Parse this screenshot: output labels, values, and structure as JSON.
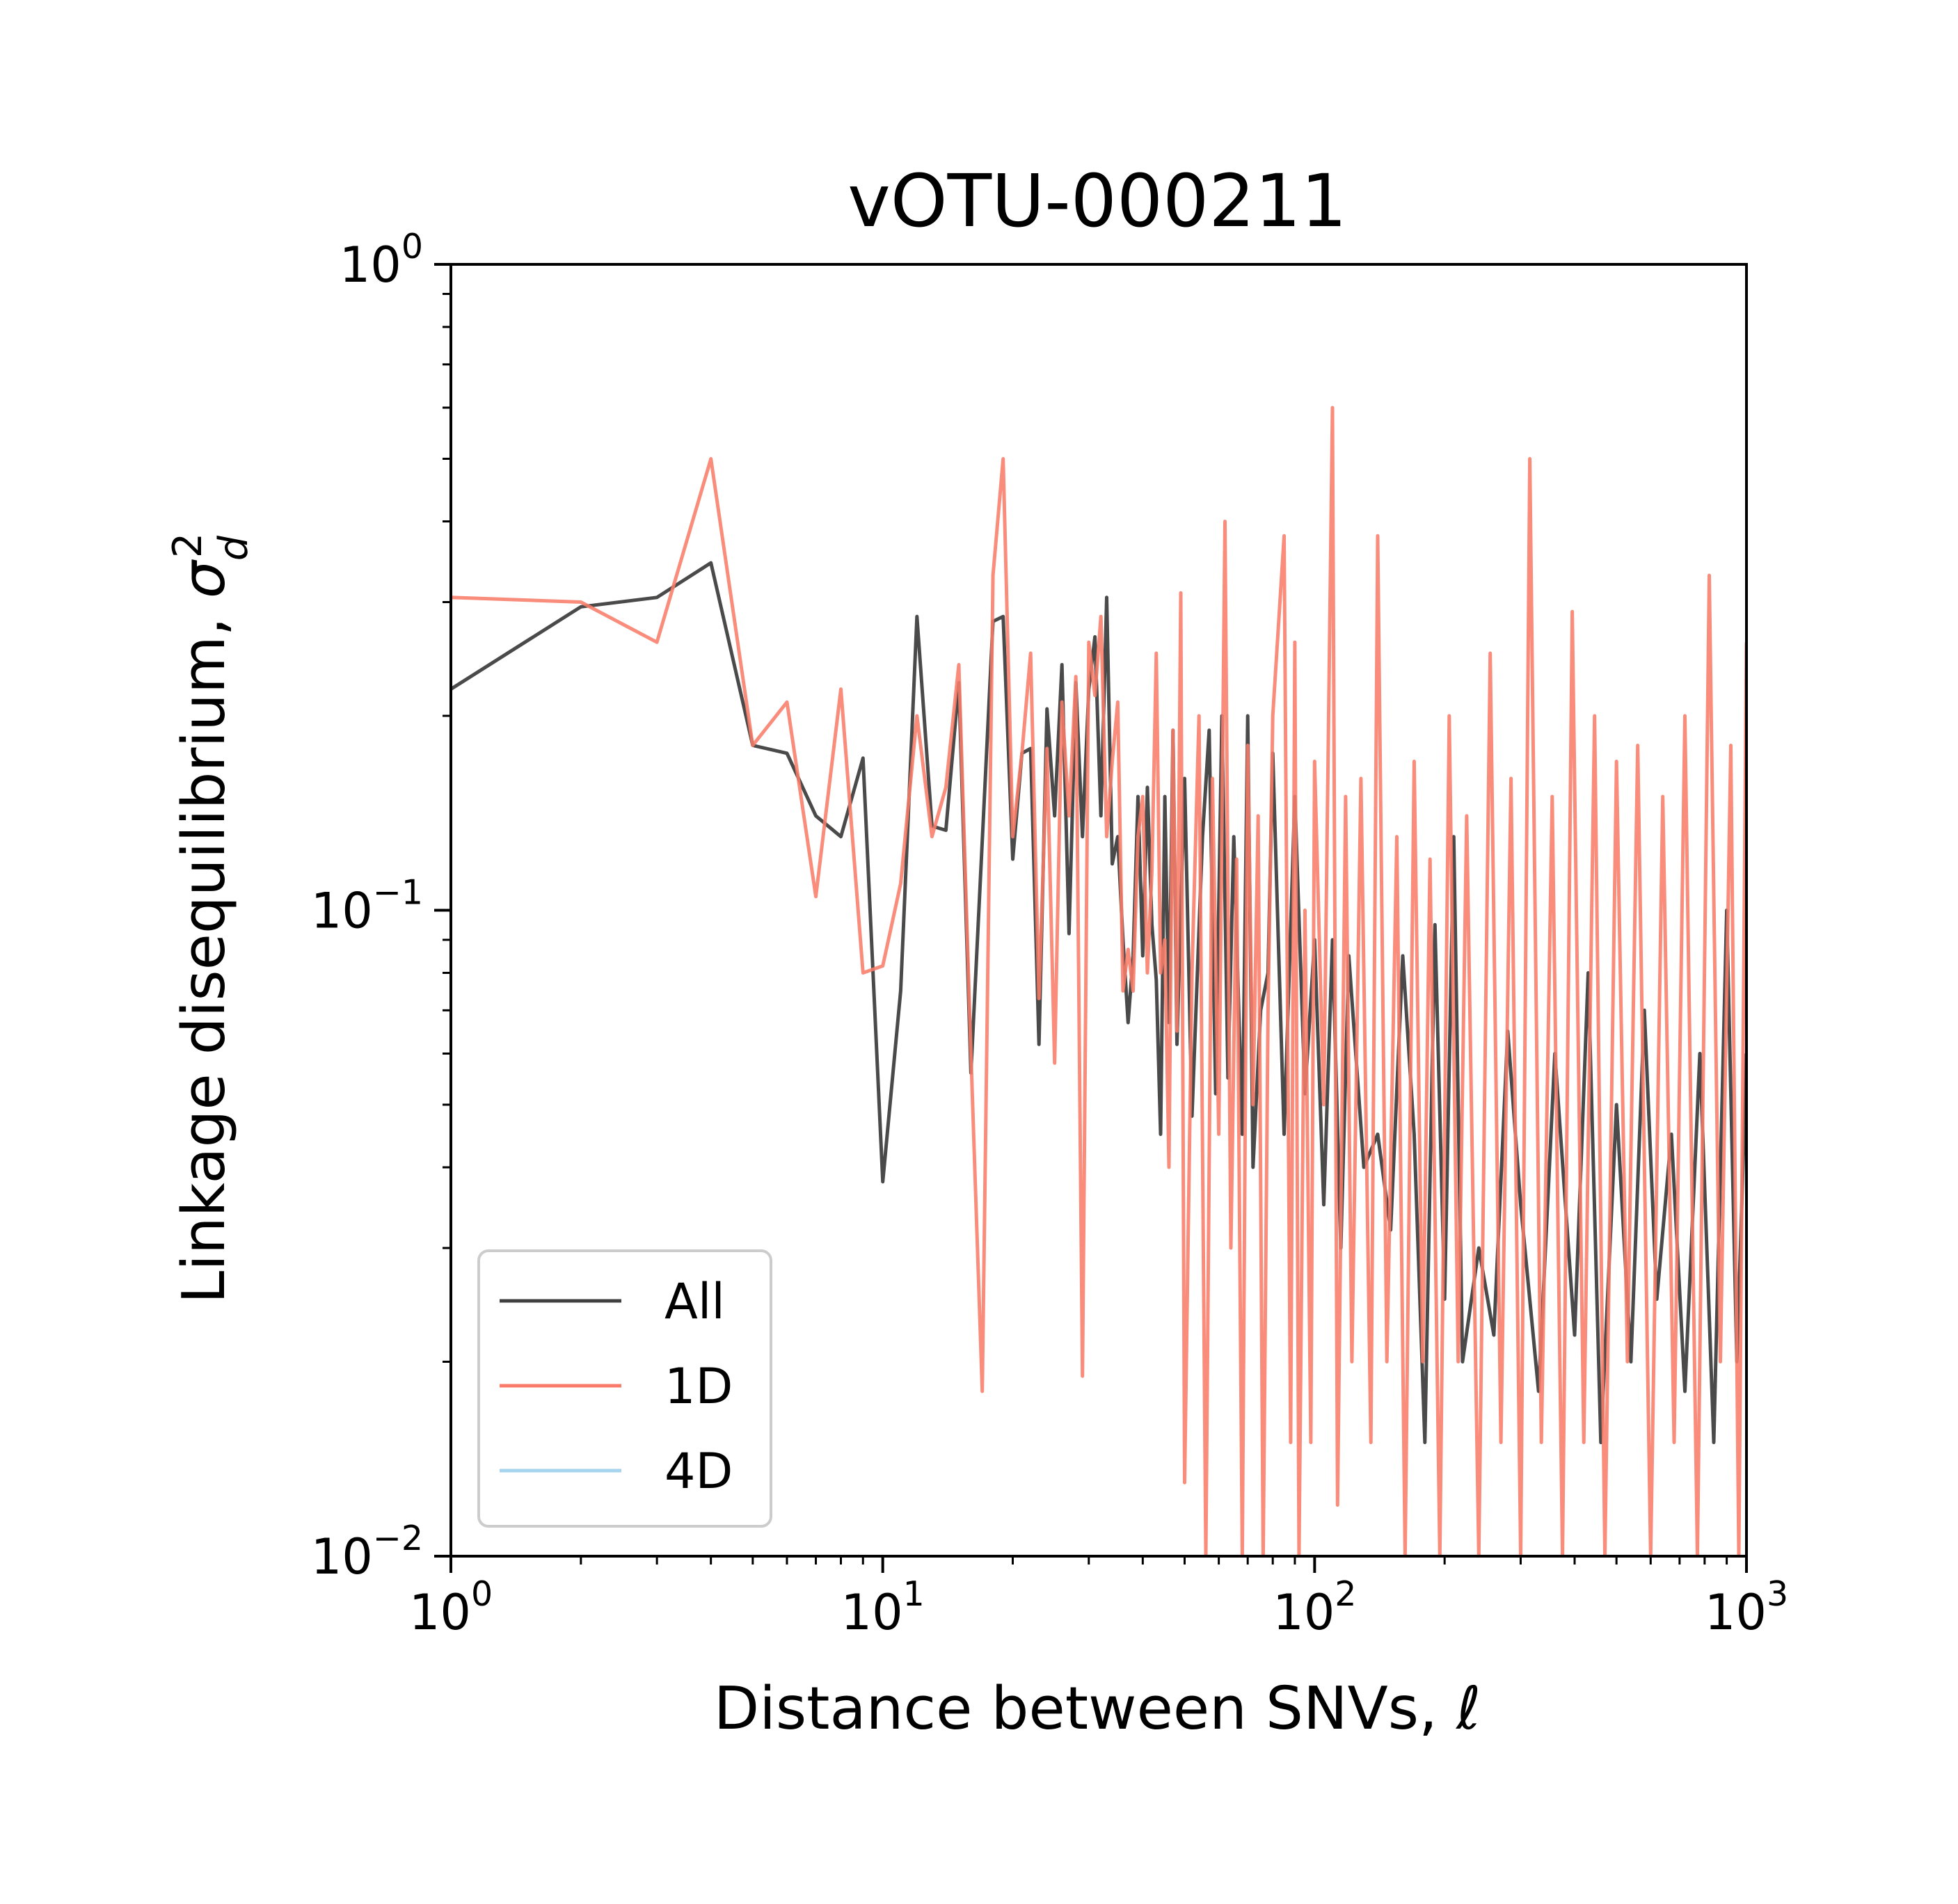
{
  "chart_data": {
    "type": "line",
    "title": "vOTU-000211",
    "xlabel": "Distance between SNVs, ℓ",
    "ylabel": "Linkage disequilibrium, σ²_d",
    "xscale": "log",
    "yscale": "log",
    "xlim": [
      1,
      1000
    ],
    "ylim": [
      0.01,
      1
    ],
    "grid": false,
    "legend": "lower-left",
    "x_ticks": [
      {
        "base": "10",
        "exp": "0"
      },
      {
        "base": "10",
        "exp": "1"
      },
      {
        "base": "10",
        "exp": "2"
      },
      {
        "base": "10",
        "exp": "3"
      }
    ],
    "y_ticks": [
      {
        "base": "10",
        "exp": "0"
      },
      {
        "base": "10",
        "exp": "−1"
      },
      {
        "base": "10",
        "exp": "−2"
      }
    ],
    "series": [
      {
        "name": "All",
        "color": "#404040",
        "points": [
          [
            1,
            0.22
          ],
          [
            2,
            0.295
          ],
          [
            3,
            0.305
          ],
          [
            4,
            0.345
          ],
          [
            5,
            0.18
          ],
          [
            6,
            0.175
          ],
          [
            7,
            0.14
          ],
          [
            8,
            0.13
          ],
          [
            9,
            0.172
          ],
          [
            10,
            0.038
          ],
          [
            11,
            0.075
          ],
          [
            12,
            0.285
          ],
          [
            13,
            0.135
          ],
          [
            14,
            0.133
          ],
          [
            15,
            0.225
          ],
          [
            16,
            0.056
          ],
          [
            18,
            0.28
          ],
          [
            19,
            0.285
          ],
          [
            20,
            0.12
          ],
          [
            21,
            0.175
          ],
          [
            22,
            0.178
          ],
          [
            23,
            0.062
          ],
          [
            24,
            0.205
          ],
          [
            25,
            0.14
          ],
          [
            26,
            0.24
          ],
          [
            27,
            0.092
          ],
          [
            28,
            0.225
          ],
          [
            29,
            0.13
          ],
          [
            30,
            0.22
          ],
          [
            31,
            0.265
          ],
          [
            32,
            0.14
          ],
          [
            33,
            0.305
          ],
          [
            34,
            0.118
          ],
          [
            35,
            0.13
          ],
          [
            36,
            0.09
          ],
          [
            37,
            0.067
          ],
          [
            38,
            0.085
          ],
          [
            39,
            0.15
          ],
          [
            40,
            0.085
          ],
          [
            41,
            0.155
          ],
          [
            42,
            0.095
          ],
          [
            43,
            0.078
          ],
          [
            44,
            0.045
          ],
          [
            45,
            0.15
          ],
          [
            46,
            0.067
          ],
          [
            47,
            0.19
          ],
          [
            48,
            0.062
          ],
          [
            50,
            0.16
          ],
          [
            52,
            0.048
          ],
          [
            55,
            0.13
          ],
          [
            57,
            0.19
          ],
          [
            59,
            0.052
          ],
          [
            61,
            0.2
          ],
          [
            63,
            0.055
          ],
          [
            65,
            0.13
          ],
          [
            68,
            0.045
          ],
          [
            70,
            0.2
          ],
          [
            72,
            0.04
          ],
          [
            75,
            0.07
          ],
          [
            78,
            0.08
          ],
          [
            80,
            0.175
          ],
          [
            85,
            0.045
          ],
          [
            90,
            0.15
          ],
          [
            95,
            0.052
          ],
          [
            100,
            0.09
          ],
          [
            105,
            0.035
          ],
          [
            110,
            0.09
          ],
          [
            115,
            0.03
          ],
          [
            120,
            0.085
          ],
          [
            130,
            0.04
          ],
          [
            140,
            0.045
          ],
          [
            150,
            0.032
          ],
          [
            160,
            0.085
          ],
          [
            170,
            0.045
          ],
          [
            180,
            0.015
          ],
          [
            190,
            0.095
          ],
          [
            200,
            0.025
          ],
          [
            210,
            0.13
          ],
          [
            220,
            0.02
          ],
          [
            240,
            0.03
          ],
          [
            260,
            0.022
          ],
          [
            280,
            0.065
          ],
          [
            300,
            0.035
          ],
          [
            330,
            0.018
          ],
          [
            360,
            0.06
          ],
          [
            400,
            0.022
          ],
          [
            430,
            0.08
          ],
          [
            460,
            0.015
          ],
          [
            500,
            0.05
          ],
          [
            540,
            0.02
          ],
          [
            580,
            0.07
          ],
          [
            620,
            0.025
          ],
          [
            670,
            0.045
          ],
          [
            720,
            0.018
          ],
          [
            780,
            0.06
          ],
          [
            840,
            0.015
          ],
          [
            900,
            0.1
          ],
          [
            950,
            0.02
          ],
          [
            1000,
            0.06
          ]
        ]
      },
      {
        "name": "1D",
        "color": "#f87c69",
        "points": [
          [
            1,
            0.305
          ],
          [
            2,
            0.3
          ],
          [
            3,
            0.26
          ],
          [
            4,
            0.5
          ],
          [
            5,
            0.18
          ],
          [
            6,
            0.21
          ],
          [
            7,
            0.105
          ],
          [
            8,
            0.22
          ],
          [
            9,
            0.08
          ],
          [
            10,
            0.082
          ],
          [
            11,
            0.11
          ],
          [
            12,
            0.2
          ],
          [
            13,
            0.13
          ],
          [
            14,
            0.155
          ],
          [
            15,
            0.24
          ],
          [
            16,
            0.06
          ],
          [
            17,
            0.018
          ],
          [
            18,
            0.33
          ],
          [
            19,
            0.5
          ],
          [
            20,
            0.13
          ],
          [
            21,
            0.175
          ],
          [
            22,
            0.25
          ],
          [
            23,
            0.073
          ],
          [
            24,
            0.178
          ],
          [
            25,
            0.058
          ],
          [
            26,
            0.21
          ],
          [
            27,
            0.14
          ],
          [
            28,
            0.23
          ],
          [
            29,
            0.019
          ],
          [
            30,
            0.26
          ],
          [
            31,
            0.215
          ],
          [
            32,
            0.285
          ],
          [
            33,
            0.13
          ],
          [
            34,
            0.17
          ],
          [
            35,
            0.21
          ],
          [
            36,
            0.075
          ],
          [
            37,
            0.087
          ],
          [
            38,
            0.075
          ],
          [
            39,
            0.13
          ],
          [
            40,
            0.15
          ],
          [
            41,
            0.08
          ],
          [
            42,
            0.115
          ],
          [
            43,
            0.25
          ],
          [
            44,
            0.08
          ],
          [
            45,
            0.09
          ],
          [
            46,
            0.04
          ],
          [
            47,
            0.19
          ],
          [
            48,
            0.065
          ],
          [
            49,
            0.31
          ],
          [
            50,
            0.013
          ],
          [
            52,
            0.08
          ],
          [
            54,
            0.2
          ],
          [
            56,
            0.01
          ],
          [
            58,
            0.16
          ],
          [
            60,
            0.045
          ],
          [
            62,
            0.4
          ],
          [
            64,
            0.03
          ],
          [
            66,
            0.12
          ],
          [
            68,
            0.01
          ],
          [
            70,
            0.18
          ],
          [
            72,
            0.05
          ],
          [
            74,
            0.14
          ],
          [
            76,
            0.01
          ],
          [
            78,
            0.07
          ],
          [
            80,
            0.2
          ],
          [
            85,
            0.38
          ],
          [
            88,
            0.015
          ],
          [
            90,
            0.26
          ],
          [
            92,
            0.01
          ],
          [
            95,
            0.1
          ],
          [
            98,
            0.015
          ],
          [
            100,
            0.17
          ],
          [
            105,
            0.05
          ],
          [
            110,
            0.6
          ],
          [
            113,
            0.012
          ],
          [
            118,
            0.15
          ],
          [
            122,
            0.02
          ],
          [
            128,
            0.16
          ],
          [
            135,
            0.015
          ],
          [
            140,
            0.38
          ],
          [
            147,
            0.02
          ],
          [
            155,
            0.13
          ],
          [
            162,
            0.01
          ],
          [
            170,
            0.17
          ],
          [
            178,
            0.02
          ],
          [
            185,
            0.12
          ],
          [
            195,
            0.01
          ],
          [
            205,
            0.2
          ],
          [
            215,
            0.02
          ],
          [
            225,
            0.14
          ],
          [
            240,
            0.01
          ],
          [
            255,
            0.25
          ],
          [
            270,
            0.015
          ],
          [
            285,
            0.16
          ],
          [
            300,
            0.01
          ],
          [
            315,
            0.5
          ],
          [
            335,
            0.015
          ],
          [
            355,
            0.15
          ],
          [
            375,
            0.01
          ],
          [
            395,
            0.29
          ],
          [
            420,
            0.015
          ],
          [
            445,
            0.2
          ],
          [
            470,
            0.01
          ],
          [
            500,
            0.17
          ],
          [
            530,
            0.02
          ],
          [
            560,
            0.18
          ],
          [
            600,
            0.01
          ],
          [
            640,
            0.15
          ],
          [
            680,
            0.015
          ],
          [
            720,
            0.2
          ],
          [
            770,
            0.01
          ],
          [
            820,
            0.33
          ],
          [
            870,
            0.02
          ],
          [
            920,
            0.18
          ],
          [
            960,
            0.01
          ],
          [
            1000,
            0.26
          ]
        ]
      },
      {
        "name": "4D",
        "color": "#a6d4ee",
        "points": []
      }
    ]
  }
}
